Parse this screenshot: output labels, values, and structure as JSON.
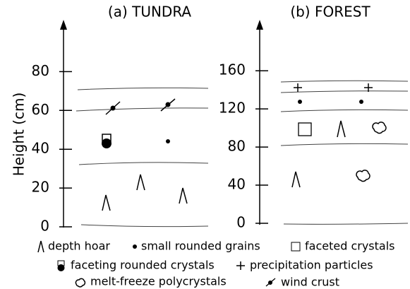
{
  "panels": [
    {
      "title": "(a) TUNDRA",
      "ylim": [
        0,
        106
      ],
      "yticks": [
        0,
        20,
        40,
        60,
        80
      ]
    },
    {
      "title": "(b) FOREST",
      "ylim": [
        0,
        212
      ],
      "yticks": [
        0,
        40,
        80,
        120,
        160
      ]
    }
  ],
  "y_label": "Height (cm)",
  "legend": [
    "depth hoar",
    "small rounded grains",
    "faceted crystals",
    "faceting rounded crystals",
    "precipitation particles",
    "melt-freeze polycrystals",
    "wind crust"
  ]
}
